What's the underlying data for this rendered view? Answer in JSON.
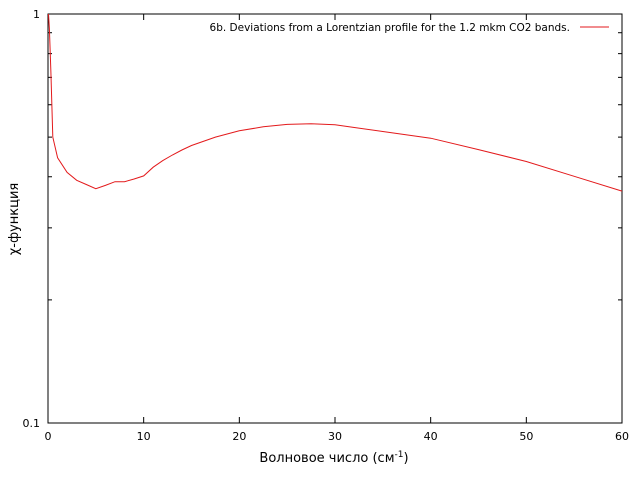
{
  "chart_data": {
    "type": "line",
    "title": "",
    "xlabel_main": "Волновое число (см",
    "xlabel_sup": "-1",
    "xlabel_close": ")",
    "ylabel": "χ-функция",
    "xlim": [
      0,
      60
    ],
    "ylim": [
      0.1,
      1
    ],
    "y_scale": "log",
    "grid": false,
    "legend_position": "top-right",
    "x_ticks": [
      "0",
      "10",
      "20",
      "30",
      "40",
      "50",
      "60"
    ],
    "y_ticks": [
      "0.1",
      "1"
    ],
    "series": [
      {
        "name": "6b. Deviations from a Lorentzian profile for the 1.2 mkm CO2 bands.",
        "color": "#e31a1c",
        "x": [
          0.05,
          0.15,
          0.3,
          0.5,
          1,
          2,
          3,
          4,
          5,
          6,
          7,
          8,
          9,
          10,
          11,
          12,
          13,
          14,
          15,
          17.5,
          20,
          22.5,
          25,
          27.5,
          30,
          35,
          40,
          45,
          50,
          55,
          60
        ],
        "y": [
          1.0,
          0.92,
          0.72,
          0.5,
          0.445,
          0.41,
          0.392,
          0.383,
          0.374,
          0.381,
          0.389,
          0.389,
          0.395,
          0.402,
          0.422,
          0.438,
          0.452,
          0.465,
          0.477,
          0.5,
          0.518,
          0.53,
          0.537,
          0.539,
          0.536,
          0.516,
          0.497,
          0.466,
          0.436,
          0.401,
          0.369
        ]
      }
    ]
  }
}
